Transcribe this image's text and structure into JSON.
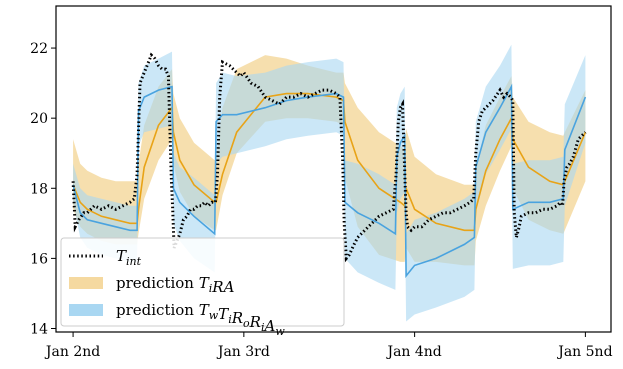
{
  "chart_data": {
    "type": "line",
    "title": "",
    "xlabel": "",
    "ylabel": "",
    "x_ticks": [
      {
        "x": 0,
        "label": "Jan 2nd"
      },
      {
        "x": 24,
        "label": "Jan 3rd"
      },
      {
        "x": 48,
        "label": "Jan 4nd"
      },
      {
        "x": 72,
        "label": "Jan 5nd"
      }
    ],
    "xlim": [
      -2.4,
      75.6
    ],
    "ylim": [
      13.9,
      23.2
    ],
    "y_ticks": [
      14,
      16,
      18,
      20,
      22
    ],
    "grid": false,
    "legend": {
      "placement": "bottom-left",
      "entries": [
        {
          "series": "measured",
          "prefix": "",
          "sym": "T",
          "sub": "int"
        },
        {
          "series": "pred_tira",
          "prefix": "prediction ",
          "sym": "T",
          "sub": "i",
          "tail": "RA"
        },
        {
          "series": "pred_twtirorihaw",
          "prefix": "prediction ",
          "sym": "T",
          "sub": "w",
          "rest": [
            [
              "T",
              "i"
            ],
            [
              "R",
              "o"
            ],
            [
              "R",
              "i"
            ],
            [
              "A",
              "w"
            ]
          ]
        }
      ]
    },
    "colors": {
      "measured": "#000000",
      "pred_tira_line": "#e8a317",
      "pred_tira_band": "#f5d9a0",
      "pred_tw_line": "#4aa3df",
      "pred_tw_band": "#a9d7f2"
    },
    "series": [
      {
        "id": "pred_tira",
        "style": "line+band",
        "x": [
          0,
          1,
          2,
          4,
          6,
          8,
          9,
          9.2,
          10,
          12,
          13.9,
          14.1,
          15,
          17,
          19.9,
          20.1,
          21,
          23,
          27,
          30,
          33,
          37,
          38,
          38.2,
          40,
          43,
          46,
          46.6,
          46.8,
          48,
          51,
          55,
          56.4,
          56.6,
          58,
          60,
          61.6,
          61.8,
          64,
          67,
          68.9,
          69.1,
          72
        ],
        "mean": [
          18.1,
          17.6,
          17.4,
          17.2,
          17.1,
          17.0,
          17.0,
          17.4,
          18.6,
          19.8,
          20.3,
          19.6,
          18.8,
          18.1,
          17.6,
          17.6,
          18.4,
          19.6,
          20.6,
          20.7,
          20.7,
          20.6,
          20.5,
          19.9,
          18.8,
          18.0,
          17.6,
          17.5,
          18.0,
          17.4,
          17.0,
          16.8,
          16.8,
          17.4,
          18.5,
          19.4,
          20.0,
          19.4,
          18.6,
          18.2,
          18.1,
          18.2,
          19.6
        ],
        "lower": [
          17.4,
          16.9,
          16.7,
          16.5,
          16.4,
          16.4,
          16.4,
          16.7,
          17.7,
          18.8,
          19.4,
          18.7,
          17.9,
          17.2,
          16.8,
          16.8,
          17.8,
          19.0,
          19.9,
          20.0,
          20.0,
          19.9,
          19.8,
          18.3,
          16.9,
          16.1,
          15.9,
          15.9,
          16.3,
          15.9,
          15.9,
          15.8,
          15.8,
          16.5,
          17.5,
          18.5,
          19.2,
          18.0,
          17.1,
          16.8,
          16.7,
          16.8,
          18.2
        ],
        "upper": [
          19.4,
          18.7,
          18.5,
          18.3,
          18.2,
          18.2,
          18.2,
          18.7,
          19.8,
          20.9,
          21.4,
          20.7,
          20.0,
          19.3,
          18.8,
          18.8,
          20.3,
          21.4,
          21.8,
          21.7,
          21.5,
          21.3,
          21.3,
          21.0,
          20.3,
          19.6,
          19.2,
          19.1,
          19.7,
          18.9,
          18.4,
          18.1,
          18.1,
          18.6,
          19.8,
          20.6,
          21.2,
          20.6,
          19.9,
          19.6,
          19.5,
          19.6,
          20.8
        ]
      },
      {
        "id": "pred_twtirorihaw",
        "style": "line+band",
        "x": [
          0,
          1,
          2,
          4,
          6,
          8,
          9,
          9.2,
          10,
          12,
          13.9,
          14.1,
          15,
          17,
          19.9,
          20.1,
          21,
          23,
          27,
          30,
          33,
          37,
          38,
          38.2,
          40,
          43,
          45.3,
          45.5,
          46,
          46.6,
          46.8,
          48,
          51,
          55,
          56.4,
          56.6,
          58,
          60,
          61.6,
          61.8,
          64,
          67,
          68.9,
          69.1,
          72
        ],
        "mean": [
          18.1,
          17.3,
          17.1,
          17.0,
          16.9,
          16.8,
          16.8,
          20.2,
          20.6,
          20.8,
          20.9,
          18.0,
          17.6,
          17.2,
          16.7,
          19.9,
          20.1,
          20.1,
          20.3,
          20.5,
          20.6,
          20.7,
          20.6,
          17.6,
          17.3,
          17.0,
          16.7,
          18.9,
          19.3,
          19.5,
          15.5,
          15.8,
          16.0,
          16.4,
          16.6,
          18.6,
          19.6,
          20.3,
          20.9,
          17.4,
          17.6,
          17.6,
          17.7,
          19.1,
          20.6
        ],
        "lower": [
          17.6,
          16.6,
          16.3,
          16.1,
          16.0,
          15.9,
          15.9,
          19.2,
          19.6,
          19.7,
          19.8,
          17.0,
          16.5,
          16.0,
          15.6,
          18.7,
          18.9,
          19.0,
          19.2,
          19.4,
          19.5,
          19.6,
          19.5,
          16.0,
          15.6,
          15.3,
          15.1,
          17.3,
          17.7,
          17.9,
          14.2,
          14.4,
          14.6,
          14.9,
          15.1,
          17.3,
          18.4,
          19.1,
          19.7,
          15.7,
          15.8,
          15.8,
          15.9,
          17.5,
          19.3
        ],
        "upper": [
          18.7,
          18.0,
          17.8,
          17.7,
          17.6,
          17.5,
          17.5,
          21.0,
          21.5,
          21.7,
          21.9,
          19.0,
          18.6,
          18.3,
          17.8,
          21.0,
          21.3,
          21.2,
          21.3,
          21.5,
          21.6,
          21.7,
          21.6,
          18.8,
          18.7,
          18.4,
          18.1,
          20.3,
          20.7,
          20.9,
          16.7,
          17.1,
          17.3,
          17.7,
          17.9,
          19.9,
          20.9,
          21.5,
          22.1,
          18.7,
          18.8,
          18.8,
          18.9,
          20.4,
          21.8
        ]
      },
      {
        "id": "measured",
        "style": "dotted",
        "x": [
          0,
          0.3,
          0.8,
          1.5,
          2,
          3,
          4,
          5,
          6,
          7,
          8,
          8.6,
          9,
          9.4,
          10,
          10.6,
          11,
          11.5,
          12,
          12.5,
          13,
          13.4,
          13.8,
          14,
          14.2,
          14.6,
          15,
          15.5,
          16,
          16.5,
          17,
          17.5,
          18,
          18.5,
          19,
          19.5,
          20,
          20.3,
          20.6,
          21,
          22,
          23,
          23.5,
          24,
          25,
          26,
          27,
          28,
          29,
          30,
          31,
          32,
          33,
          34,
          35,
          36,
          37,
          37.5,
          37.9,
          38.1,
          38.4,
          38.8,
          39.5,
          40,
          41,
          42,
          43,
          44,
          45,
          45.4,
          45.7,
          46,
          46.3,
          46.6,
          46.8,
          47,
          47.5,
          48,
          49,
          50,
          51,
          52,
          53,
          54,
          55,
          55.8,
          56.3,
          56.6,
          57,
          57.5,
          58,
          59,
          60,
          60.5,
          61,
          61.5,
          61.8,
          62,
          62.3,
          62.7,
          63,
          64,
          65,
          66,
          67,
          68,
          68.5,
          68.8,
          69,
          69.4,
          69.8,
          70.3,
          71,
          72
        ],
        "y": [
          18.2,
          16.9,
          17.1,
          17.3,
          17.3,
          17.5,
          17.4,
          17.5,
          17.4,
          17.5,
          17.6,
          17.7,
          18.4,
          21.0,
          21.3,
          21.6,
          21.8,
          21.7,
          21.5,
          21.4,
          21.4,
          21.2,
          18.3,
          17.4,
          16.3,
          16.5,
          16.7,
          17.1,
          17.2,
          17.4,
          17.4,
          17.5,
          17.5,
          17.6,
          17.5,
          17.6,
          17.6,
          18.4,
          20.6,
          21.6,
          21.5,
          21.3,
          21.2,
          21.3,
          21.0,
          20.9,
          20.6,
          20.5,
          20.4,
          20.6,
          20.6,
          20.7,
          20.6,
          20.7,
          20.8,
          20.8,
          20.7,
          20.6,
          18.8,
          17.0,
          16.0,
          16.1,
          16.4,
          16.6,
          16.8,
          17.0,
          17.2,
          17.3,
          17.4,
          18.4,
          19.9,
          20.3,
          20.4,
          18.5,
          17.3,
          16.9,
          16.8,
          16.9,
          16.9,
          17.1,
          17.2,
          17.3,
          17.3,
          17.4,
          17.5,
          17.6,
          17.7,
          19.0,
          19.9,
          20.2,
          20.3,
          20.5,
          20.8,
          20.6,
          20.7,
          20.6,
          20.5,
          17.3,
          16.6,
          16.9,
          17.2,
          17.3,
          17.3,
          17.4,
          17.4,
          17.5,
          17.6,
          17.5,
          18.2,
          18.6,
          18.7,
          18.9,
          19.4,
          19.6
        ]
      }
    ]
  }
}
